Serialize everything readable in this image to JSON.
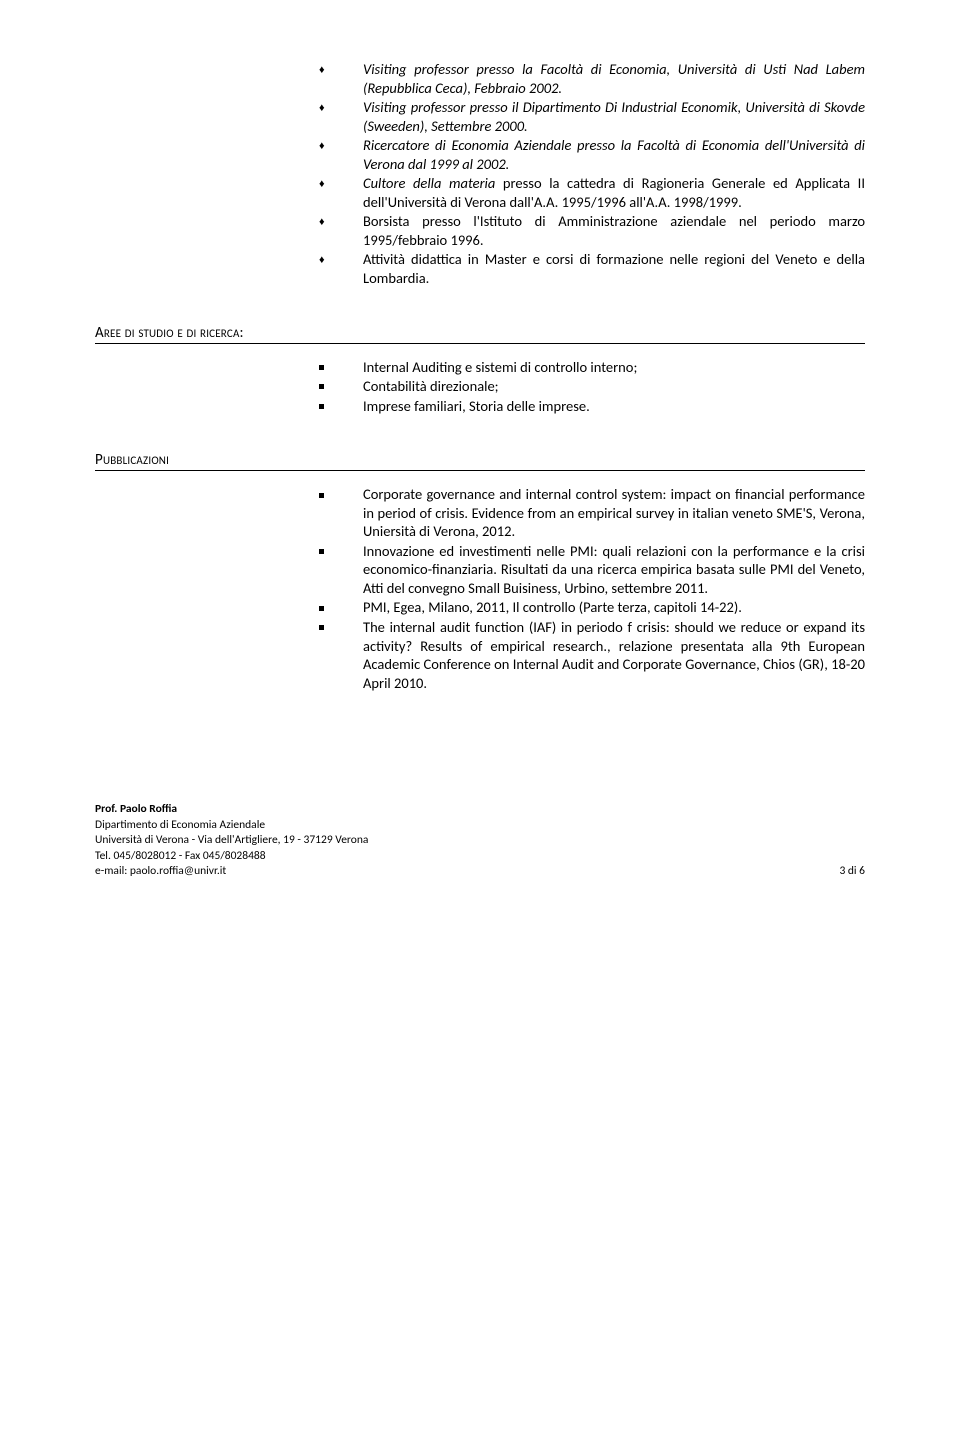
{
  "top_items": [
    {
      "italic": true,
      "text": "Visiting professor presso la Facoltà di Economia, Università di Usti Nad Labem (Repubblica Ceca), Febbraio 2002."
    },
    {
      "italic": true,
      "text": "Visiting professor presso il Dipartimento Di Industrial Economik, Università di Skovde (Sweeden), Settembre 2000."
    },
    {
      "italic": true,
      "text": "Ricercatore di Economia Aziendale presso la Facoltà di Economia dell'Università di Verona dal 1999 al 2002."
    },
    {
      "italic_prefix": "Cultore della materia",
      "rest": " presso la cattedra di Ragioneria Generale ed Applicata II dell'Università di Verona dall'A.A. 1995/1996 all'A.A. 1998/1999."
    },
    {
      "italic": false,
      "text": "Borsista presso l'Istituto di Amministrazione aziendale nel periodo marzo 1995/febbraio 1996."
    },
    {
      "italic": false,
      "text": "Attività didattica in Master e corsi di formazione nelle regioni del Veneto e della Lombardia."
    }
  ],
  "section_aree": "Aree di studio e di ricerca:",
  "aree_items": [
    "Internal Auditing e sistemi di controllo interno;",
    "Contabilità direzionale;",
    "Imprese familiari, Storia delle imprese."
  ],
  "section_pub": "Pubblicazioni",
  "pub_items": [
    "Corporate governance and internal control system: impact on financial performance in period of crisis. Evidence from an empirical survey in italian veneto SME'S, Verona, Uniersità di Verona, 2012.",
    "Innovazione ed investimenti nelle PMI: quali relazioni con la performance e la crisi economico-finanziaria. Risultati da una ricerca empirica basata sulle PMI del Veneto, Atti del convegno Small Buisiness, Urbino, settembre 2011.",
    "PMI, Egea, Milano, 2011, Il controllo (Parte terza, capitoli 14-22).",
    "The internal audit function (IAF) in periodo f crisis: should we reduce or expand its activity? Results of empirical research., relazione presentata alla 9th European Academic Conference on Internal Audit and Corporate Governance, Chios (GR), 18-20 April 2010."
  ],
  "footer": {
    "name": "Prof. Paolo Roffia",
    "dept": "Dipartimento di Economia Aziendale",
    "addr": "Università di Verona - Via dell'Artigliere, 19 - 37129 Verona",
    "tel": "Tel. 045/8028012 - Fax 045/8028488",
    "email": "e-mail: paolo.roffia@univr.it",
    "page": "3 di 6"
  }
}
